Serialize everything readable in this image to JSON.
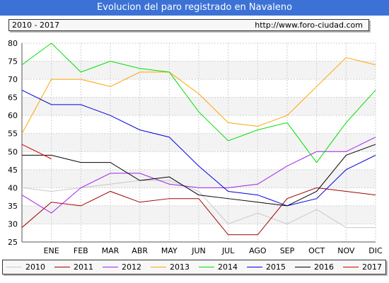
{
  "header": {
    "title": "Evolucion del paro registrado en Navaleno",
    "period": "2010 - 2017",
    "url": "http://www.foro-ciudad.com"
  },
  "chart_data": {
    "type": "line",
    "title": "Evolucion del paro registrado en Navaleno",
    "categories": [
      "",
      "ENE",
      "FEB",
      "MAR",
      "ABR",
      "MAY",
      "JUN",
      "JUL",
      "AGO",
      "SEP",
      "OCT",
      "NOV",
      "DIC"
    ],
    "ylim": [
      25,
      80
    ],
    "yticks": [
      25,
      30,
      35,
      40,
      45,
      50,
      55,
      60,
      65,
      70,
      75,
      80
    ],
    "grid": true,
    "legend_position": "bottom",
    "series": [
      {
        "name": "2010",
        "color": "#c8c8c8",
        "values": [
          40,
          39,
          40,
          41,
          42,
          42,
          39,
          30,
          33,
          30,
          34,
          29,
          29
        ]
      },
      {
        "name": "2011",
        "color": "#a00000",
        "values": [
          29,
          36,
          35,
          39,
          36,
          37,
          37,
          27,
          27,
          37,
          40,
          39,
          38
        ]
      },
      {
        "name": "2012",
        "color": "#a020f0",
        "values": [
          38,
          33,
          40,
          44,
          44,
          41,
          40,
          40,
          41,
          46,
          50,
          50,
          54
        ]
      },
      {
        "name": "2013",
        "color": "#ffa500",
        "values": [
          55,
          70,
          70,
          68,
          72,
          72,
          66,
          58,
          57,
          60,
          68,
          76,
          74
        ]
      },
      {
        "name": "2014",
        "color": "#00e000",
        "values": [
          74,
          80,
          72,
          75,
          73,
          72,
          61,
          53,
          56,
          58,
          47,
          58,
          67
        ]
      },
      {
        "name": "2015",
        "color": "#0000e0",
        "values": [
          67,
          63,
          63,
          60,
          56,
          54,
          46,
          39,
          38,
          35,
          37,
          45,
          49
        ]
      },
      {
        "name": "2016",
        "color": "#000000",
        "values": [
          49,
          49,
          47,
          47,
          42,
          43,
          38,
          37,
          36,
          35,
          39,
          49,
          52
        ]
      },
      {
        "name": "2017",
        "color": "#d00000",
        "values": [
          52,
          48,
          null,
          null,
          null,
          null,
          null,
          null,
          null,
          null,
          null,
          null,
          null
        ]
      }
    ]
  }
}
